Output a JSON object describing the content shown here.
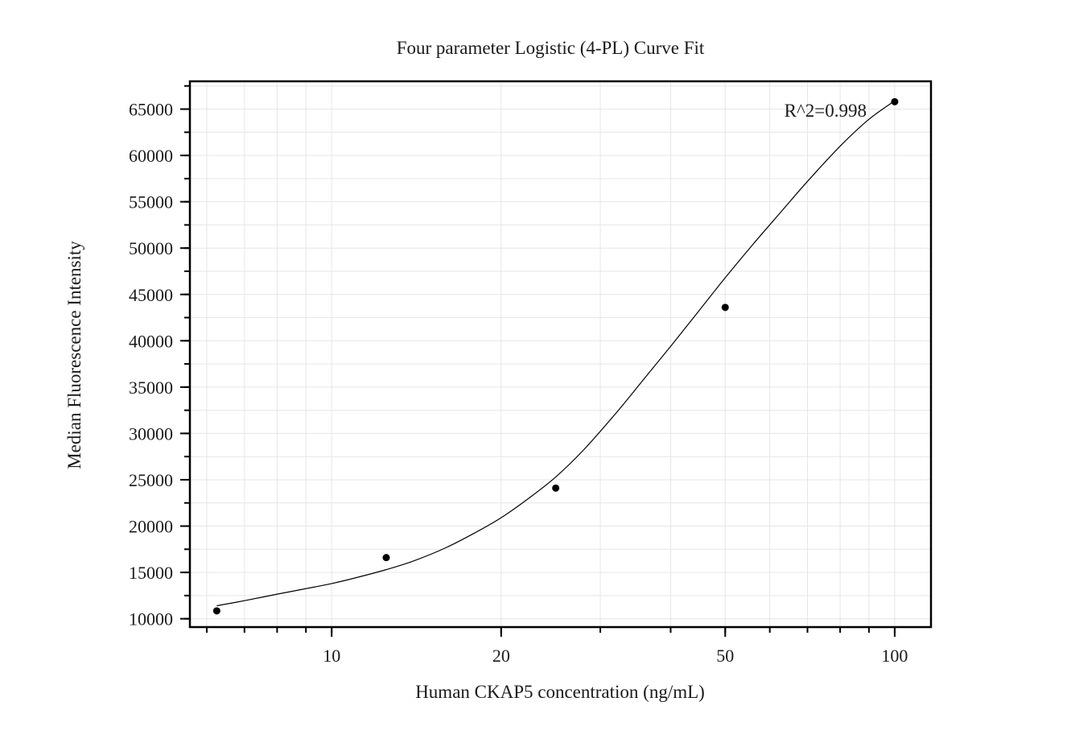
{
  "chart_data": {
    "type": "scatter",
    "title": "Four parameter Logistic (4-PL) Curve Fit",
    "xlabel": "Human CKAP5 concentration (ng/mL)",
    "ylabel": "Median Fluorescence Intensity",
    "x_scale": "log",
    "xlim": [
      5.6,
      116
    ],
    "ylim": [
      9100,
      68000
    ],
    "x_ticks": [
      {
        "value": 10,
        "label": "10"
      },
      {
        "value": 20,
        "label": "20"
      },
      {
        "value": 50,
        "label": "50"
      },
      {
        "value": 100,
        "label": "100"
      }
    ],
    "y_ticks": [
      {
        "value": 10000,
        "label": "10000"
      },
      {
        "value": 15000,
        "label": "15000"
      },
      {
        "value": 20000,
        "label": "20000"
      },
      {
        "value": 25000,
        "label": "25000"
      },
      {
        "value": 30000,
        "label": "30000"
      },
      {
        "value": 35000,
        "label": "35000"
      },
      {
        "value": 40000,
        "label": "40000"
      },
      {
        "value": 45000,
        "label": "45000"
      },
      {
        "value": 50000,
        "label": "50000"
      },
      {
        "value": 55000,
        "label": "55000"
      },
      {
        "value": 60000,
        "label": "60000"
      },
      {
        "value": 65000,
        "label": "65000"
      }
    ],
    "grid": true,
    "series": [
      {
        "points": [
          {
            "x": 6.25,
            "y": 10850
          },
          {
            "x": 12.5,
            "y": 16600
          },
          {
            "x": 25,
            "y": 24100
          },
          {
            "x": 50,
            "y": 43600
          },
          {
            "x": 100,
            "y": 65800
          }
        ]
      }
    ],
    "fit_curve": {
      "x": [
        6.25,
        7,
        8,
        9,
        10,
        11,
        12.5,
        14,
        16,
        18,
        20,
        22.5,
        25,
        28,
        32,
        36,
        40,
        45,
        50,
        56,
        63,
        70,
        80,
        90,
        100
      ],
      "y": [
        11400,
        11950,
        12650,
        13250,
        13800,
        14400,
        15300,
        16250,
        17700,
        19300,
        20900,
        23100,
        25300,
        28200,
        32200,
        36000,
        39400,
        43300,
        46800,
        50400,
        54000,
        57200,
        61000,
        63900,
        65900
      ]
    },
    "annotations": [
      {
        "text": "R^2=0.998"
      }
    ]
  }
}
